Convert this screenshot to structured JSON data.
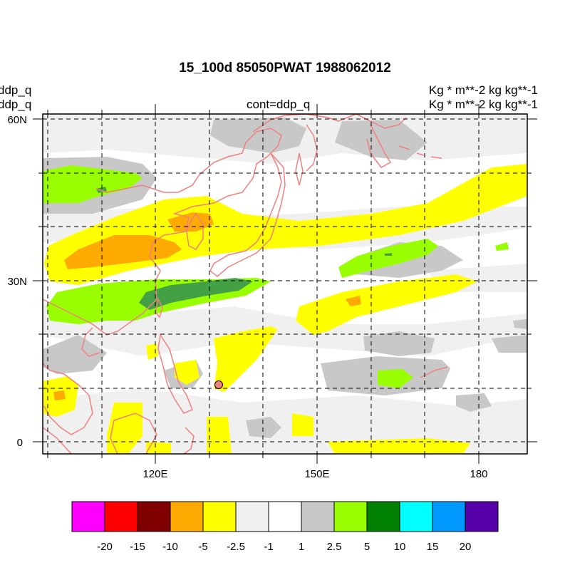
{
  "header": {
    "title": "15_100d 85050PWAT  1988062012",
    "left_label_1": "ddp_q",
    "left_label_2": "ddp_q",
    "right_label_1": "Kg  * m**-2 kg kg**-1",
    "right_label_2": "Kg  * m**-2 kg kg**-1",
    "center_label": "cont=ddp_q"
  },
  "map": {
    "projection": "cylindrical-equidistant",
    "lon_range": [
      100,
      190
    ],
    "lat_range": [
      -2,
      61
    ],
    "gridlines": "dashed",
    "x_ticks": [
      "120E",
      "150E",
      "180"
    ],
    "y_ticks": [
      "60N",
      "30N",
      "0"
    ],
    "coastline_color": "#f08080",
    "marker": {
      "lon": 132,
      "lat": 10.5,
      "color": "#f08080"
    }
  },
  "colorbar": {
    "colors": [
      "#ff00ff",
      "#ff0000",
      "#800000",
      "#ffaa00",
      "#ffff00",
      "#f0f0f0",
      "#ffffff",
      "#c8c8c8",
      "#99ff00",
      "#008000",
      "#00ffff",
      "#0099ff",
      "#5500aa"
    ],
    "labels": [
      "-20",
      "-15",
      "-10",
      "-5",
      "-2.5",
      "-1",
      "1",
      "2.5",
      "5",
      "10",
      "15",
      "20"
    ]
  }
}
